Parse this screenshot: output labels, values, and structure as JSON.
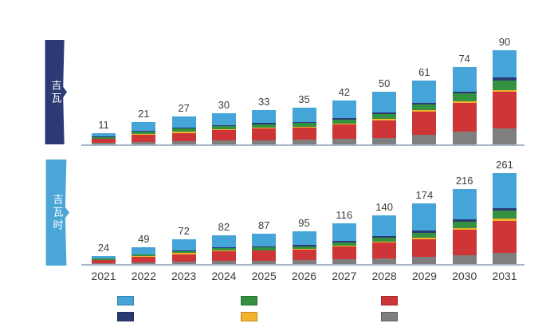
{
  "page": {
    "background": "#ffffff"
  },
  "colors": {
    "axis_line": "#A9B4C6",
    "label_text": "#3D3D3D",
    "banner_top_bg": "#2C3B76",
    "banner_bottom_bg": "#4BA6D8",
    "banner_text": "#FFFFFF"
  },
  "banners": [
    {
      "label": "吉瓦"
    },
    {
      "label": "吉瓦时"
    }
  ],
  "legend": {
    "columns": [
      {
        "items": [
          {
            "name": "light-blue-series",
            "color": "#46A5D8"
          },
          {
            "name": "navy-series",
            "color": "#2B3A74"
          }
        ]
      },
      {
        "items": [
          {
            "name": "green-series",
            "color": "#33913F"
          },
          {
            "name": "yellow-series",
            "color": "#F2B32B"
          }
        ]
      },
      {
        "items": [
          {
            "name": "red-series",
            "color": "#CE3537"
          },
          {
            "name": "gray-series",
            "color": "#7F7F7F"
          }
        ]
      }
    ]
  },
  "chart_data": [
    {
      "type": "bar",
      "subtype": "stacked",
      "panel_label": "吉瓦",
      "categories": [
        "2021",
        "2022",
        "2023",
        "2024",
        "2025",
        "2026",
        "2027",
        "2028",
        "2029",
        "2030",
        "2031"
      ],
      "totals": [
        11,
        21,
        27,
        30,
        33,
        35,
        42,
        50,
        61,
        74,
        90
      ],
      "ylim": [
        0,
        90
      ],
      "grid": false,
      "stack_order_bottom_to_top": [
        "gray",
        "red",
        "yellow",
        "green",
        "navy",
        "light_blue"
      ],
      "series": [
        {
          "name": "gray",
          "color": "#7F7F7F",
          "values": [
            1.5,
            2.5,
            3,
            3.5,
            4,
            4.5,
            5,
            6,
            9,
            12,
            15
          ]
        },
        {
          "name": "red",
          "color": "#CE3537",
          "values": [
            3.5,
            6.5,
            8,
            10,
            11,
            11.5,
            14,
            17,
            22,
            28,
            35
          ]
        },
        {
          "name": "yellow",
          "color": "#F2B32B",
          "values": [
            0.3,
            0.7,
            1.5,
            1,
            0.8,
            0.8,
            1,
            1.2,
            1.5,
            1.5,
            2
          ]
        },
        {
          "name": "green",
          "color": "#33913F",
          "values": [
            1.7,
            2.3,
            3,
            3,
            3.5,
            3.5,
            4,
            4.8,
            5.5,
            7,
            9
          ]
        },
        {
          "name": "navy",
          "color": "#2B3A74",
          "values": [
            0.5,
            0.7,
            0.8,
            0.8,
            1,
            1.2,
            1.3,
            1.5,
            2,
            2,
            3
          ]
        },
        {
          "name": "light_blue",
          "color": "#46A5D8",
          "values": [
            3.5,
            8.3,
            10.7,
            11.7,
            12.7,
            13.5,
            16.7,
            19.5,
            21,
            23.5,
            26
          ]
        }
      ]
    },
    {
      "type": "bar",
      "subtype": "stacked",
      "panel_label": "吉瓦时",
      "categories": [
        "2021",
        "2022",
        "2023",
        "2024",
        "2025",
        "2026",
        "2027",
        "2028",
        "2029",
        "2030",
        "2031"
      ],
      "totals": [
        24,
        49,
        72,
        82,
        87,
        95,
        116,
        140,
        174,
        216,
        261
      ],
      "ylim": [
        0,
        261
      ],
      "grid": false,
      "stack_order_bottom_to_top": [
        "gray",
        "red",
        "yellow",
        "green",
        "navy",
        "light_blue"
      ],
      "series": [
        {
          "name": "gray",
          "color": "#7F7F7F",
          "values": [
            3,
            5,
            7,
            9,
            10,
            11,
            13,
            16,
            20,
            26,
            31
          ]
        },
        {
          "name": "red",
          "color": "#CE3537",
          "values": [
            8.5,
            16,
            21,
            27,
            28,
            30,
            37,
            45,
            52,
            72,
            93
          ]
        },
        {
          "name": "yellow",
          "color": "#F2B32B",
          "values": [
            0.5,
            1.5,
            3,
            2,
            2,
            2,
            2.5,
            3,
            4,
            4.5,
            5.5
          ]
        },
        {
          "name": "green",
          "color": "#33913F",
          "values": [
            3,
            4.5,
            6.5,
            7.5,
            8,
            8.5,
            10,
            12,
            13.5,
            18,
            23
          ]
        },
        {
          "name": "navy",
          "color": "#2B3A74",
          "values": [
            1,
            1.5,
            2,
            2.5,
            2.5,
            3,
            3.5,
            4.5,
            6,
            7,
            8.5
          ]
        },
        {
          "name": "light_blue",
          "color": "#46A5D8",
          "values": [
            8,
            20.5,
            32.5,
            34,
            36.5,
            40.5,
            50,
            59.5,
            78.5,
            88.5,
            100
          ]
        }
      ]
    }
  ]
}
